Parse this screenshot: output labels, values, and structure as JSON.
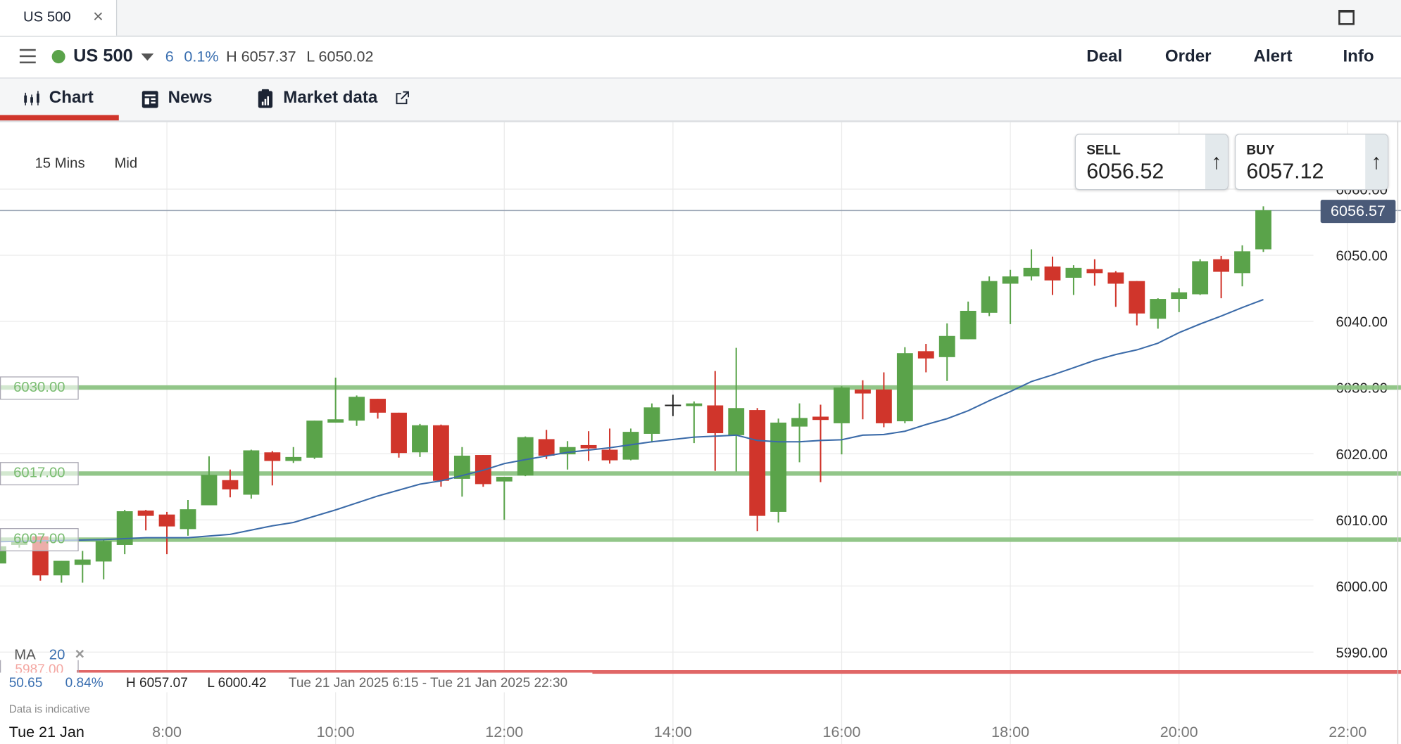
{
  "window": {
    "tab_title": "US 500",
    "tab_close": "×"
  },
  "header": {
    "symbol": "US 500",
    "change": "6",
    "change_pct": "0.1%",
    "high": "H 6057.37",
    "low": "L 6050.02",
    "status_color": "#5aa34a",
    "actions": [
      "Deal",
      "Order",
      "Alert",
      "Info"
    ]
  },
  "nav": {
    "tabs": [
      "Chart",
      "News",
      "Market data"
    ],
    "active": "Chart"
  },
  "chart_controls": {
    "interval": "15 Mins",
    "price_type": "Mid"
  },
  "quote": {
    "sell_label": "SELL",
    "sell": "6056.52",
    "buy_label": "BUY",
    "buy": "6057.12",
    "arrow": "↑"
  },
  "current_price": "6056.57",
  "levels": [
    {
      "label": "6030.00",
      "value": 6030,
      "color": "#8dc383"
    },
    {
      "label": "6017.00",
      "value": 6017,
      "color": "#8dc383"
    },
    {
      "label": "6007.00",
      "value": 6007,
      "color": "#8dc383"
    },
    {
      "label": "5987.00",
      "value": 5987,
      "color": "#e06666"
    }
  ],
  "indicator": {
    "name": "MA",
    "period": "20",
    "close": "×"
  },
  "summary": {
    "change": "50.65",
    "change_pct": "0.84%",
    "high": "H 6057.07",
    "low": "L 6000.42",
    "range": "Tue 21 Jan 2025 6:15 - Tue 21 Jan 2025 22:30"
  },
  "disclaimer": "Data is indicative",
  "date_label": "Tue 21 Jan",
  "chart_data": {
    "type": "candlestick",
    "interval": "15 Mins",
    "ylim": [
      5985,
      6065
    ],
    "y_ticks": [
      "6060.00",
      "6050.00",
      "6040.00",
      "6030.00",
      "6020.00",
      "6010.00",
      "6000.00",
      "5990.00"
    ],
    "x_ticks": [
      "8:00",
      "10:00",
      "12:00",
      "14:00",
      "16:00",
      "18:00",
      "20:00",
      "22:00"
    ],
    "up_color": "#5aa34a",
    "down_color": "#d0352b",
    "ma_color": "#3a6aa8",
    "candles": [
      [
        "6:00",
        6003.4,
        6006.5,
        6003.0,
        6006.0
      ],
      [
        "6:15",
        6006.2,
        6007.0,
        6005.8,
        6006.8
      ],
      [
        "6:30",
        6007.5,
        6007.5,
        6000.8,
        6001.6
      ],
      [
        "6:45",
        6001.6,
        6003.8,
        6000.5,
        6003.8
      ],
      [
        "7:00",
        6003.2,
        6005.3,
        6000.5,
        6004.0
      ],
      [
        "7:15",
        6003.7,
        6007.0,
        6001.0,
        6006.8
      ],
      [
        "7:30",
        6006.2,
        6011.5,
        6004.8,
        6011.3
      ],
      [
        "7:45",
        6011.4,
        6011.5,
        6008.4,
        6010.6
      ],
      [
        "8:00",
        6010.8,
        6011.2,
        6004.8,
        6009.0
      ],
      [
        "8:15",
        6008.6,
        6013.0,
        6007.6,
        6011.6
      ],
      [
        "8:30",
        6012.2,
        6019.6,
        6012.2,
        6016.8
      ],
      [
        "8:45",
        6016.0,
        6017.6,
        6013.4,
        6014.6
      ],
      [
        "9:00",
        6013.8,
        6020.6,
        6013.2,
        6020.5
      ],
      [
        "9:15",
        6020.2,
        6020.4,
        6015.2,
        6018.9
      ],
      [
        "9:30",
        6018.9,
        6021.0,
        6018.6,
        6019.5
      ],
      [
        "9:45",
        6019.4,
        6025.0,
        6019.2,
        6025.0
      ],
      [
        "10:00",
        6024.7,
        6031.5,
        6024.7,
        6025.2
      ],
      [
        "10:15",
        6025.0,
        6028.8,
        6024.2,
        6028.6
      ],
      [
        "10:30",
        6028.3,
        6028.3,
        6025.3,
        6026.2
      ],
      [
        "10:45",
        6026.2,
        6026.2,
        6019.4,
        6020.1
      ],
      [
        "11:00",
        6020.2,
        6024.5,
        6019.5,
        6024.3
      ],
      [
        "11:15",
        6024.3,
        6024.4,
        6015.0,
        6015.9
      ],
      [
        "11:30",
        6016.2,
        6021.0,
        6013.5,
        6019.7
      ],
      [
        "11:45",
        6019.8,
        6019.8,
        6015.0,
        6015.4
      ],
      [
        "12:00",
        6015.8,
        6016.5,
        6010.0,
        6016.5
      ],
      [
        "12:15",
        6016.7,
        6022.6,
        6016.6,
        6022.5
      ],
      [
        "12:30",
        6022.2,
        6023.6,
        6019.2,
        6019.7
      ],
      [
        "12:45",
        6019.9,
        6021.9,
        6017.6,
        6021.0
      ],
      [
        "13:00",
        6021.3,
        6023.4,
        6018.9,
        6020.8
      ],
      [
        "13:15",
        6020.6,
        6023.8,
        6018.5,
        6019.0
      ],
      [
        "13:30",
        6019.1,
        6023.8,
        6019.0,
        6023.3
      ],
      [
        "13:45",
        6023.0,
        6027.6,
        6021.7,
        6027.0
      ],
      [
        "14:15",
        6027.2,
        6027.9,
        6021.6,
        6027.6
      ],
      [
        "14:30",
        6027.3,
        6032.5,
        6017.4,
        6023.1
      ],
      [
        "14:45",
        6022.8,
        6036.0,
        6017.3,
        6026.9
      ],
      [
        "15:00",
        6026.6,
        6026.9,
        6008.3,
        6010.6
      ],
      [
        "15:15",
        6011.2,
        6025.3,
        6009.6,
        6024.7
      ],
      [
        "15:30",
        6024.1,
        6027.6,
        6018.7,
        6025.4
      ],
      [
        "15:45",
        6025.6,
        6027.4,
        6015.7,
        6025.1
      ],
      [
        "16:00",
        6024.6,
        6030.2,
        6019.9,
        6030.0
      ],
      [
        "16:15",
        6029.7,
        6031.1,
        6025.2,
        6029.1
      ],
      [
        "16:30",
        6029.7,
        6032.3,
        6024.0,
        6024.6
      ],
      [
        "16:45",
        6024.9,
        6036.1,
        6024.6,
        6035.2
      ],
      [
        "17:00",
        6035.5,
        6036.6,
        6032.3,
        6034.4
      ],
      [
        "17:15",
        6034.6,
        6039.7,
        6031.0,
        6037.8
      ],
      [
        "17:30",
        6037.3,
        6043.0,
        6037.3,
        6041.6
      ],
      [
        "17:45",
        6041.3,
        6046.8,
        6040.8,
        6046.1
      ],
      [
        "18:00",
        6045.7,
        6047.8,
        6039.6,
        6046.8
      ],
      [
        "18:15",
        6046.8,
        6050.9,
        6046.2,
        6048.1
      ],
      [
        "18:30",
        6048.3,
        6049.8,
        6044.0,
        6046.2
      ],
      [
        "18:45",
        6046.6,
        6048.5,
        6044.0,
        6048.1
      ],
      [
        "19:00",
        6047.9,
        6049.4,
        6045.4,
        6047.3
      ],
      [
        "19:15",
        6047.4,
        6047.6,
        6042.2,
        6045.7
      ],
      [
        "19:30",
        6046.1,
        6046.1,
        6039.4,
        6041.2
      ],
      [
        "19:45",
        6040.4,
        6043.5,
        6038.9,
        6043.4
      ],
      [
        "20:00",
        6043.4,
        6045.0,
        6041.4,
        6044.4
      ],
      [
        "20:15",
        6044.1,
        6049.4,
        6044.0,
        6049.1
      ],
      [
        "20:30",
        6049.4,
        6049.9,
        6043.5,
        6047.5
      ],
      [
        "20:45",
        6047.3,
        6051.5,
        6045.3,
        6050.6
      ],
      [
        "21:00",
        6050.9,
        6057.4,
        6050.5,
        6056.8
      ]
    ],
    "ma": [
      [
        "6:00",
        6006.7
      ],
      [
        "7:15",
        6007.0
      ],
      [
        "7:45",
        6007.3
      ],
      [
        "8:15",
        6007.3
      ],
      [
        "8:45",
        6007.8
      ],
      [
        "9:15",
        6009.1
      ],
      [
        "9:30",
        6009.6
      ],
      [
        "10:00",
        6011.5
      ],
      [
        "10:30",
        6013.6
      ],
      [
        "11:00",
        6015.4
      ],
      [
        "11:15",
        6015.9
      ],
      [
        "11:45",
        6017.5
      ],
      [
        "12:00",
        6018.5
      ],
      [
        "12:15",
        6019.1
      ],
      [
        "12:45",
        6020.2
      ],
      [
        "13:15",
        6020.9
      ],
      [
        "13:45",
        6021.8
      ],
      [
        "14:15",
        6022.5
      ],
      [
        "14:45",
        6022.8
      ],
      [
        "15:00",
        6022.0
      ],
      [
        "15:15",
        6021.8
      ],
      [
        "15:30",
        6021.8
      ],
      [
        "15:45",
        6022.0
      ],
      [
        "16:00",
        6022.1
      ],
      [
        "16:15",
        6022.8
      ],
      [
        "16:30",
        6022.9
      ],
      [
        "16:45",
        6023.4
      ],
      [
        "17:00",
        6024.4
      ],
      [
        "17:15",
        6025.3
      ],
      [
        "17:30",
        6026.5
      ],
      [
        "17:45",
        6028.0
      ],
      [
        "18:00",
        6029.4
      ],
      [
        "18:15",
        6030.9
      ],
      [
        "18:30",
        6031.9
      ],
      [
        "18:45",
        6033.0
      ],
      [
        "19:00",
        6034.1
      ],
      [
        "19:15",
        6035.0
      ],
      [
        "19:30",
        6035.7
      ],
      [
        "19:45",
        6036.7
      ],
      [
        "20:00",
        6038.3
      ],
      [
        "20:15",
        6039.6
      ],
      [
        "20:30",
        6040.8
      ],
      [
        "20:45",
        6042.1
      ],
      [
        "21:00",
        6043.3
      ]
    ],
    "crosshair": {
      "time": "14:00",
      "price": 6027.3
    }
  }
}
